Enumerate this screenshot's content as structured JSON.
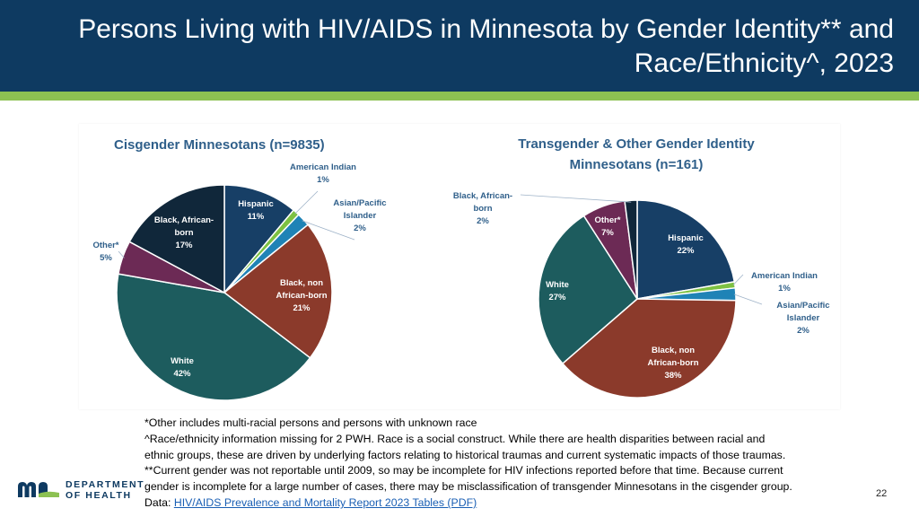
{
  "slide": {
    "title_line1": "Persons Living with HIV/AIDS in Minnesota by Gender Identity** and",
    "title_line2": "Race/Ethnicity^, 2023",
    "page_number": "22"
  },
  "colors": {
    "header_bg": "#0e3a61",
    "accent_stripe": "#8cc152",
    "chart_title": "#2f5f8a"
  },
  "chart_data": [
    {
      "type": "pie",
      "title_line1": "Cisgender Minnesotans (n=9835)",
      "title_line2": "",
      "slices": [
        {
          "name": "Hispanic",
          "value": 11,
          "label": "11%",
          "color": "#173f66",
          "text_color": "#ffffff"
        },
        {
          "name": "American Indian",
          "value": 1,
          "label": "1%",
          "color": "#7dc142",
          "text_color": "#2f5f8a"
        },
        {
          "name": "Asian/Pacific Islander",
          "value": 2,
          "label": "2%",
          "color": "#1f83b6",
          "text_color": "#2f5f8a"
        },
        {
          "name": "Black, non African-born",
          "value": 21,
          "label": "21%",
          "color": "#8b3a2b",
          "text_color": "#ffffff"
        },
        {
          "name": "White",
          "value": 42,
          "label": "42%",
          "color": "#1d5c5e",
          "text_color": "#ffffff"
        },
        {
          "name": "Other*",
          "value": 5,
          "label": "5%",
          "color": "#6c2a55",
          "text_color": "#2f5f8a"
        },
        {
          "name": "Black, African-born",
          "value": 17,
          "label": "17%",
          "color": "#10273a",
          "text_color": "#ffffff"
        }
      ]
    },
    {
      "type": "pie",
      "title_line1": "Transgender & Other Gender Identity",
      "title_line2": "Minnesotans (n=161)",
      "slices": [
        {
          "name": "Hispanic",
          "value": 22,
          "label": "22%",
          "color": "#173f66",
          "text_color": "#ffffff"
        },
        {
          "name": "American Indian",
          "value": 1,
          "label": "1%",
          "color": "#7dc142",
          "text_color": "#2f5f8a"
        },
        {
          "name": "Asian/Pacific Islander",
          "value": 2,
          "label": "2%",
          "color": "#1f83b6",
          "text_color": "#2f5f8a"
        },
        {
          "name": "Black, non African-born",
          "value": 38,
          "label": "38%",
          "color": "#8b3a2b",
          "text_color": "#ffffff"
        },
        {
          "name": "White",
          "value": 27,
          "label": "27%",
          "color": "#1d5c5e",
          "text_color": "#ffffff"
        },
        {
          "name": "Other*",
          "value": 7,
          "label": "7%",
          "color": "#6c2a55",
          "text_color": "#ffffff"
        },
        {
          "name": "Black, African-born",
          "value": 2,
          "label": "2%",
          "color": "#10273a",
          "text_color": "#2f5f8a"
        }
      ]
    }
  ],
  "notes": {
    "line1": "*Other includes multi-racial persons and persons with unknown race",
    "line2": "^Race/ethnicity information missing for 2 PWH. Race is a social construct. While there are health disparities between racial and",
    "line3": "ethnic groups, these are driven by underlying factors relating to historical traumas and current systematic impacts of those traumas.",
    "line4": "**Current gender was not reportable until 2009, so may be incomplete for HIV infections reported before that time. Because current",
    "line5": "gender is incomplete for a large number of cases, there may be misclassification of transgender Minnesotans in the cisgender group.",
    "data_prefix": "Data: ",
    "data_link_text": "HIV/AIDS Prevalence and Mortality Report 2023 Tables (PDF)"
  },
  "logo": {
    "line1": "DEPARTMENT",
    "line2": "OF HEALTH"
  }
}
